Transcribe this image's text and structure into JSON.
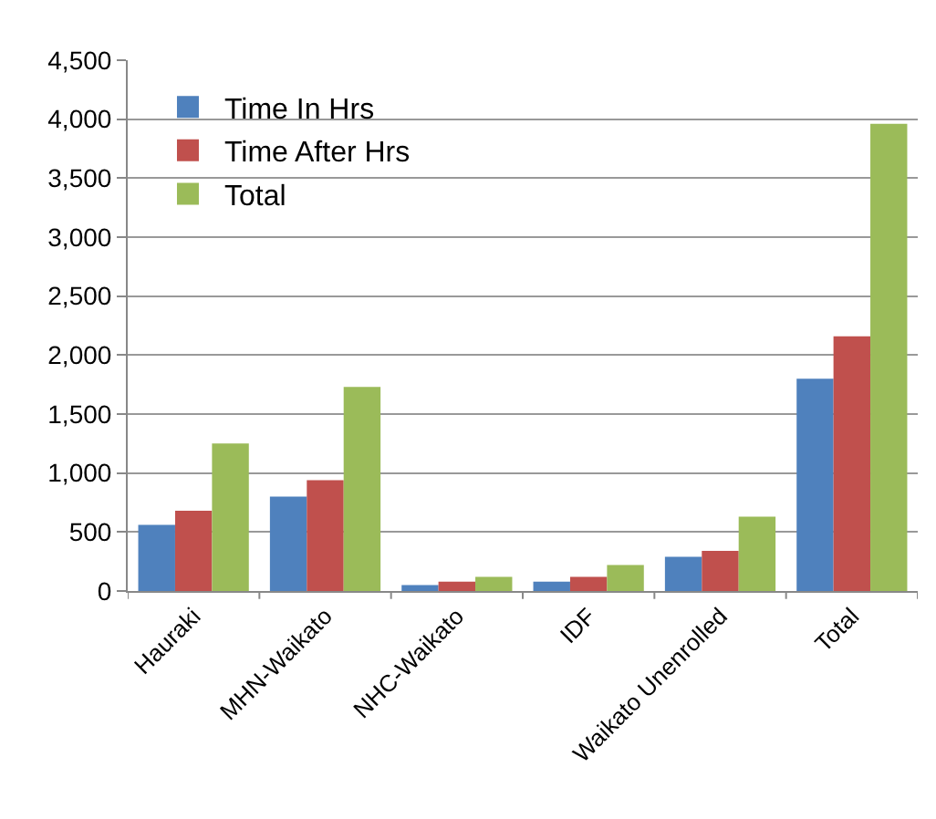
{
  "chart_data": {
    "type": "bar",
    "categories": [
      "Hauraki",
      "MHN-Waikato",
      "NHC-Waikato",
      "IDF",
      "Waikato Unenrolled",
      "Total"
    ],
    "series": [
      {
        "name": "Time In Hrs",
        "color": "#4f81bd",
        "values": [
          560,
          800,
          50,
          80,
          290,
          1800
        ]
      },
      {
        "name": "Time After Hrs",
        "color": "#c0504d",
        "values": [
          680,
          940,
          80,
          120,
          340,
          2160
        ]
      },
      {
        "name": "Total",
        "color": "#9bbb59",
        "values": [
          1250,
          1730,
          120,
          220,
          630,
          3960
        ]
      }
    ],
    "ylim": [
      0,
      4500
    ],
    "yticks": [
      {
        "value": 0,
        "label": "0"
      },
      {
        "value": 500,
        "label": "500"
      },
      {
        "value": 1000,
        "label": "1,000"
      },
      {
        "value": 1500,
        "label": "1,500"
      },
      {
        "value": 2000,
        "label": "2,000"
      },
      {
        "value": 2500,
        "label": "2,500"
      },
      {
        "value": 3000,
        "label": "3,000"
      },
      {
        "value": 3500,
        "label": "3,500"
      },
      {
        "value": 4000,
        "label": "4,000"
      },
      {
        "value": 4500,
        "label": "4,500"
      }
    ],
    "grid": "y",
    "legend": "top left"
  }
}
